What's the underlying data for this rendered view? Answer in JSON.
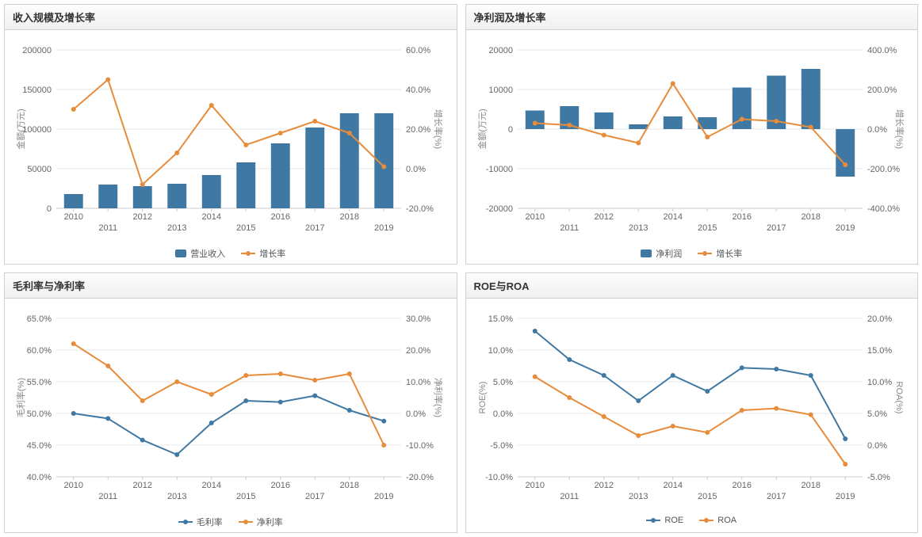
{
  "years": [
    "2010",
    "2011",
    "2012",
    "2013",
    "2014",
    "2015",
    "2016",
    "2017",
    "2018",
    "2019"
  ],
  "colors": {
    "bar": "#3f79a3",
    "line1": "#e78c3a",
    "line_blue": "#3f79a3",
    "grid": "#e8e8e8",
    "axis": "#cccccc",
    "text": "#666666",
    "bg": "#ffffff"
  },
  "chart1": {
    "title": "收入规模及增长率",
    "type": "bar+line",
    "yleft_label": "金额(万元)",
    "yright_label": "增长率(%)",
    "yleft_min": 0,
    "yleft_max": 200000,
    "yleft_step": 50000,
    "yright_min": -20,
    "yright_max": 60,
    "yright_step": 20,
    "bars": [
      18000,
      30000,
      28000,
      31000,
      42000,
      58000,
      82000,
      102000,
      120000,
      120000
    ],
    "line": [
      30,
      45,
      -8,
      8,
      32,
      12,
      18,
      24,
      18,
      1
    ],
    "legend_bar": "营业收入",
    "legend_line": "增长率"
  },
  "chart2": {
    "title": "净利润及增长率",
    "type": "bar+line",
    "yleft_label": "金额(万元)",
    "yright_label": "增长率(%)",
    "yleft_min": -20000,
    "yleft_max": 20000,
    "yleft_step": 10000,
    "yright_min": -400,
    "yright_max": 400,
    "yright_step": 200,
    "bars": [
      4700,
      5800,
      4200,
      1200,
      3200,
      3000,
      10500,
      13500,
      15200,
      -12000
    ],
    "line": [
      30,
      20,
      -30,
      -70,
      230,
      -40,
      50,
      40,
      10,
      -180
    ],
    "legend_bar": "净利润",
    "legend_line": "增长率"
  },
  "chart3": {
    "title": "毛利率与净利率",
    "type": "line2",
    "yleft_label": "毛利率(%)",
    "yright_label": "净利率(%)",
    "yleft_min": 40,
    "yleft_max": 65,
    "yleft_step": 5,
    "yright_min": -20,
    "yright_max": 30,
    "yright_step": 10,
    "line_a": [
      50.0,
      49.2,
      45.8,
      43.5,
      48.5,
      52.0,
      51.8,
      52.8,
      50.5,
      48.8
    ],
    "line_b": [
      22.0,
      15.0,
      4.0,
      10.0,
      6.0,
      12.0,
      12.5,
      10.5,
      12.5,
      -10.0
    ],
    "legend_a": "毛利率",
    "legend_b": "净利率",
    "line_a_color": "#3f79a3",
    "line_b_color": "#e78c3a"
  },
  "chart4": {
    "title": "ROE与ROA",
    "type": "line2",
    "yleft_label": "ROE(%)",
    "yright_label": "ROA(%)",
    "yleft_min": -10,
    "yleft_max": 15,
    "yleft_step": 5,
    "yright_min": -5,
    "yright_max": 20,
    "yright_step": 5,
    "line_a": [
      13.0,
      8.5,
      6.0,
      2.0,
      6.0,
      3.5,
      7.2,
      7.0,
      6.0,
      -4.0
    ],
    "line_b": [
      10.8,
      7.5,
      4.5,
      1.5,
      3.0,
      2.0,
      5.5,
      5.8,
      4.8,
      -3.0
    ],
    "legend_a": "ROE",
    "legend_b": "ROA",
    "line_a_color": "#3f79a3",
    "line_b_color": "#e78c3a"
  }
}
